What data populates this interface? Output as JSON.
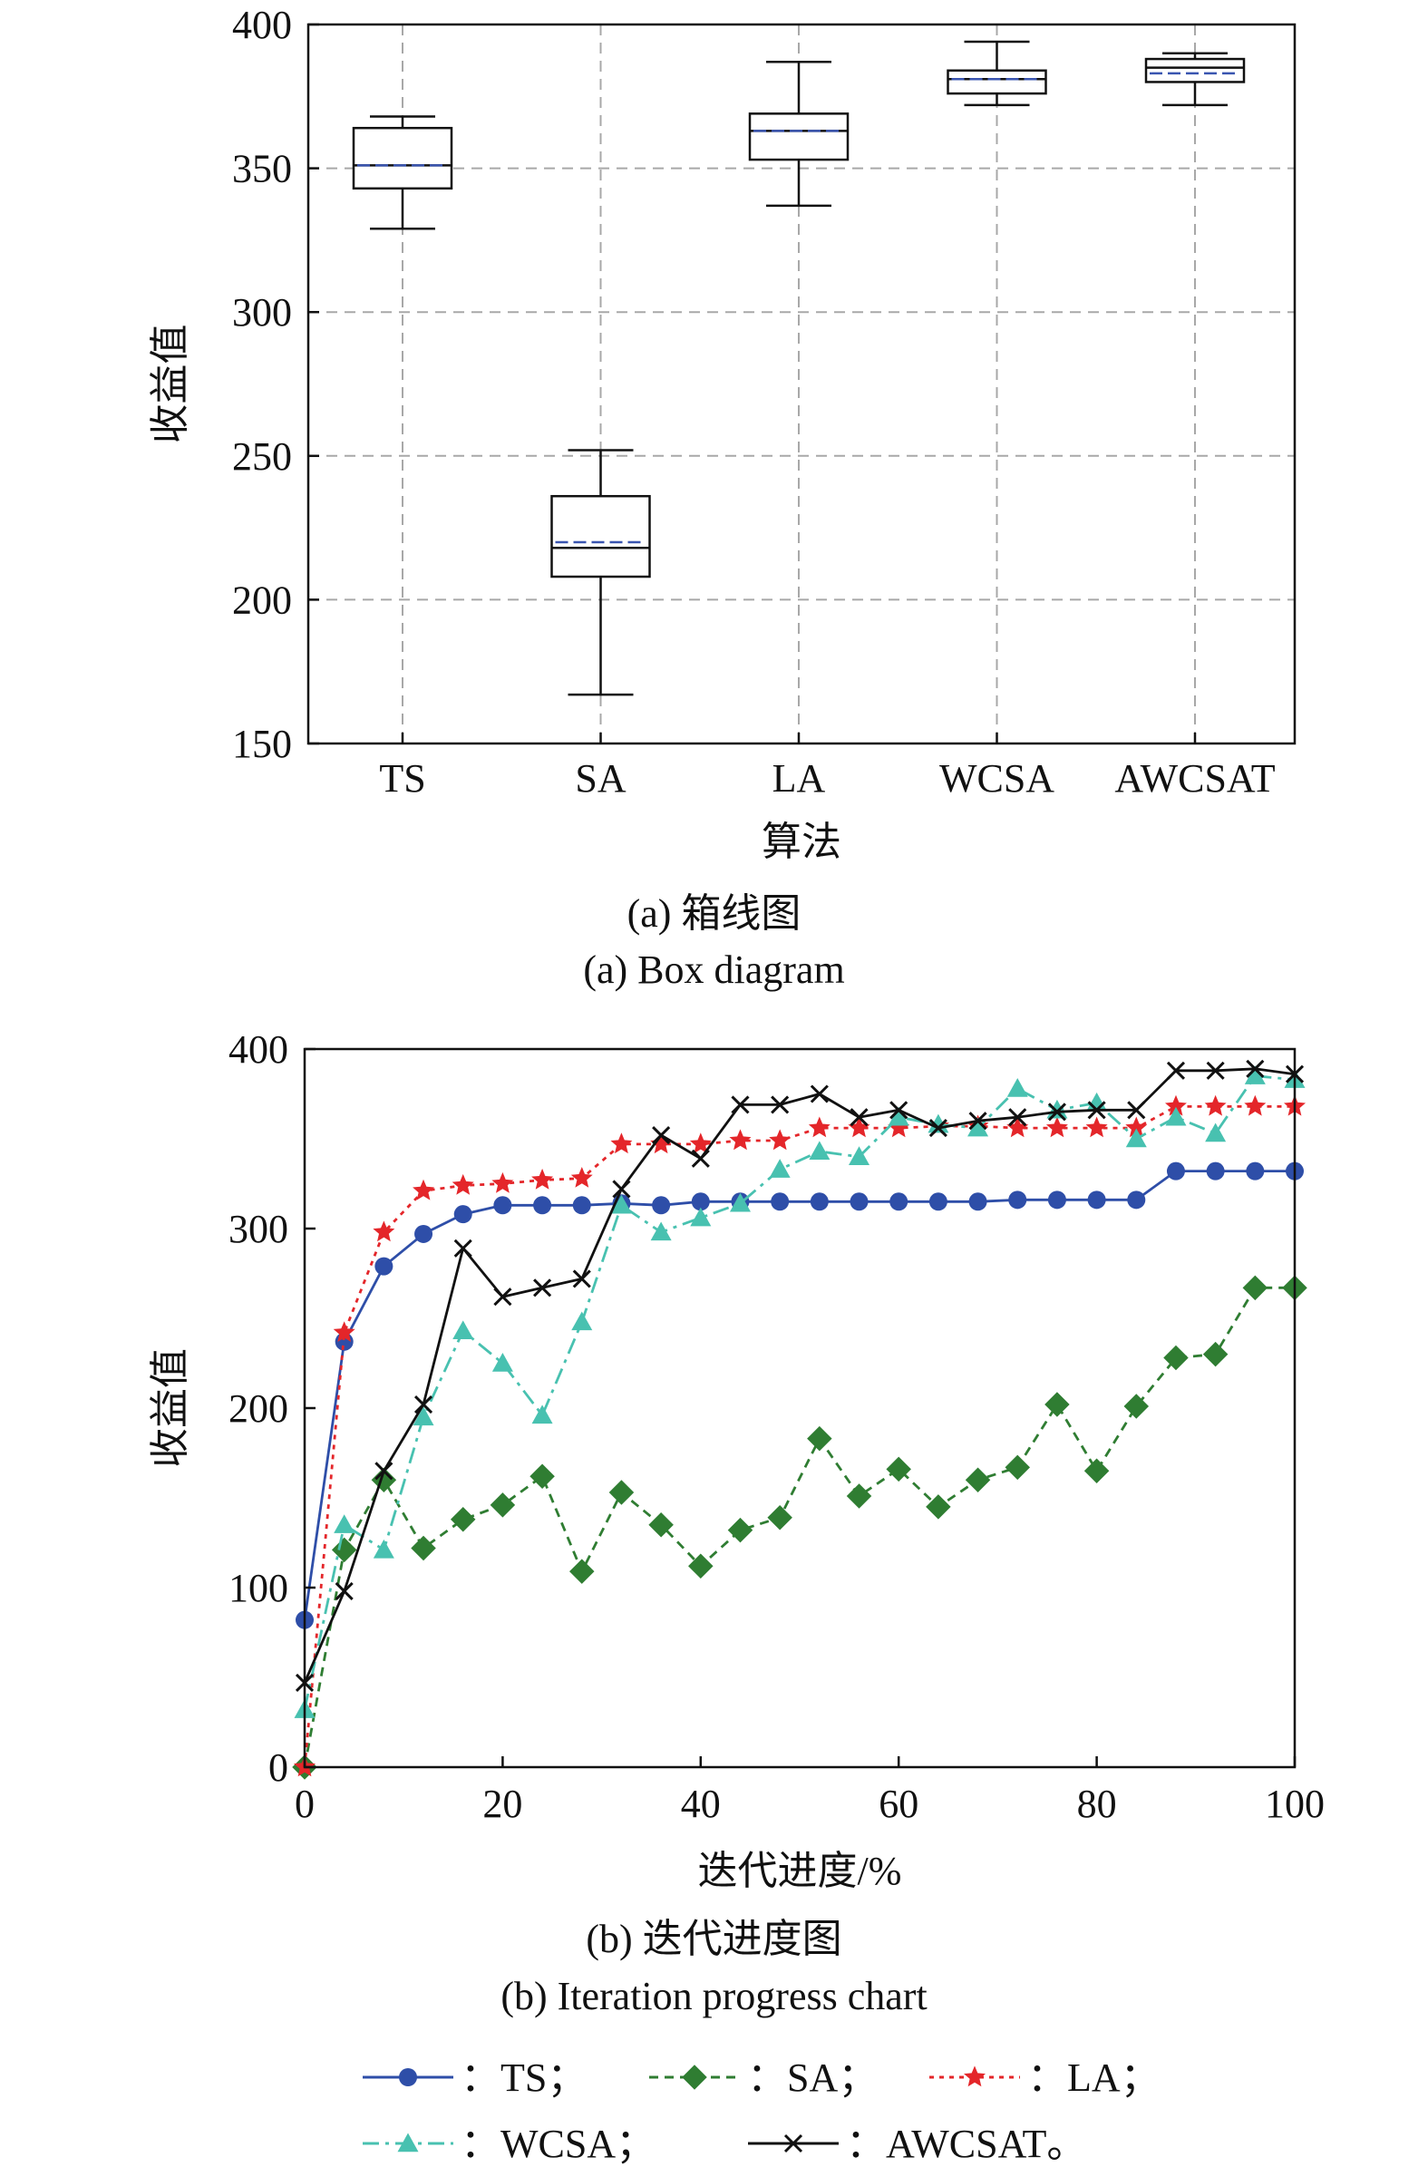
{
  "colors": {
    "TS": "#2e4ea8",
    "SA": "#2f7d32",
    "LA": "#e4262a",
    "WCSA": "#48c1b0",
    "AWCSAT": "#111111",
    "box_mean": "#3a55b0",
    "grid": "#a8a8a8"
  },
  "captions": {
    "a_cn": "(a) 箱线图",
    "a_en": "(a) Box diagram",
    "b_cn": "(b) 迭代进度图",
    "b_en": "(b) Iteration progress chart"
  },
  "legend": {
    "items": [
      {
        "series": "TS",
        "label": "：TS；"
      },
      {
        "series": "SA",
        "label": "：SA；"
      },
      {
        "series": "LA",
        "label": "：LA；"
      },
      {
        "series": "WCSA",
        "label": "：WCSA；"
      },
      {
        "series": "AWCSAT",
        "label": "：AWCSAT。"
      }
    ]
  },
  "chart_data": [
    {
      "type": "box",
      "xlabel": "算法",
      "ylabel": "收益值",
      "ylim": [
        150,
        400
      ],
      "yticks": [
        150,
        200,
        250,
        300,
        350,
        400
      ],
      "grid": true,
      "categories": [
        "TS",
        "SA",
        "LA",
        "WCSA",
        "AWCSAT"
      ],
      "boxes": [
        {
          "name": "TS",
          "min": 329,
          "q1": 343,
          "median": 351,
          "mean": 351,
          "q3": 364,
          "max": 368
        },
        {
          "name": "SA",
          "min": 167,
          "q1": 208,
          "median": 218,
          "mean": 220,
          "q3": 236,
          "max": 252
        },
        {
          "name": "LA",
          "min": 337,
          "q1": 353,
          "median": 363,
          "mean": 363,
          "q3": 369,
          "max": 387
        },
        {
          "name": "WCSA",
          "min": 372,
          "q1": 376,
          "median": 381,
          "mean": 381,
          "q3": 384,
          "max": 394
        },
        {
          "name": "AWCSAT",
          "min": 372,
          "q1": 380,
          "median": 385,
          "mean": 383,
          "q3": 388,
          "max": 390
        }
      ]
    },
    {
      "type": "line",
      "xlabel": "迭代进度/%",
      "ylabel": "收益值",
      "xlim": [
        0,
        100
      ],
      "ylim": [
        0,
        400
      ],
      "xticks": [
        0,
        20,
        40,
        60,
        80,
        100
      ],
      "yticks": [
        0,
        100,
        200,
        300,
        400
      ],
      "grid": false,
      "series": [
        {
          "name": "TS",
          "x": [
            0,
            4,
            8,
            12,
            16,
            20,
            24,
            28,
            32,
            36,
            40,
            44,
            48,
            52,
            56,
            60,
            64,
            68,
            72,
            76,
            80,
            84,
            88,
            92,
            96,
            100
          ],
          "values": [
            82,
            237,
            279,
            297,
            308,
            313,
            313,
            313,
            314,
            313,
            315,
            315,
            315,
            315,
            315,
            315,
            315,
            315,
            316,
            316,
            316,
            316,
            332,
            332,
            332,
            332
          ]
        },
        {
          "name": "SA",
          "x": [
            0,
            4,
            8,
            12,
            16,
            20,
            24,
            28,
            32,
            36,
            40,
            44,
            48,
            52,
            56,
            60,
            64,
            68,
            72,
            76,
            80,
            84,
            88,
            92,
            96,
            100
          ],
          "values": [
            0,
            121,
            160,
            122,
            138,
            146,
            162,
            109,
            153,
            135,
            112,
            132,
            139,
            183,
            151,
            166,
            145,
            160,
            167,
            202,
            165,
            201,
            228,
            230,
            267,
            267
          ]
        },
        {
          "name": "LA",
          "x": [
            0,
            4,
            8,
            12,
            16,
            20,
            24,
            28,
            32,
            36,
            40,
            44,
            48,
            52,
            56,
            60,
            64,
            68,
            72,
            76,
            80,
            84,
            88,
            92,
            96,
            100
          ],
          "values": [
            0,
            242,
            298,
            321,
            324,
            325,
            327,
            328,
            347,
            347,
            347,
            349,
            349,
            356,
            356,
            356,
            357,
            357,
            356,
            356,
            356,
            356,
            368,
            368,
            368,
            368
          ]
        },
        {
          "name": "WCSA",
          "x": [
            0,
            4,
            8,
            12,
            16,
            20,
            24,
            28,
            32,
            36,
            40,
            44,
            48,
            52,
            56,
            60,
            64,
            68,
            72,
            76,
            80,
            84,
            88,
            92,
            96,
            100
          ],
          "values": [
            32,
            135,
            121,
            195,
            243,
            225,
            196,
            248,
            313,
            298,
            306,
            314,
            333,
            343,
            340,
            362,
            358,
            356,
            378,
            366,
            370,
            350,
            362,
            353,
            385,
            383
          ]
        },
        {
          "name": "AWCSAT",
          "x": [
            0,
            4,
            8,
            12,
            16,
            20,
            24,
            28,
            32,
            36,
            40,
            44,
            48,
            52,
            56,
            60,
            64,
            68,
            72,
            76,
            80,
            84,
            88,
            92,
            96,
            100
          ],
          "values": [
            47,
            98,
            165,
            202,
            289,
            262,
            267,
            272,
            322,
            352,
            339,
            369,
            369,
            375,
            362,
            366,
            356,
            360,
            362,
            365,
            366,
            366,
            388,
            388,
            389,
            386
          ]
        }
      ]
    }
  ]
}
